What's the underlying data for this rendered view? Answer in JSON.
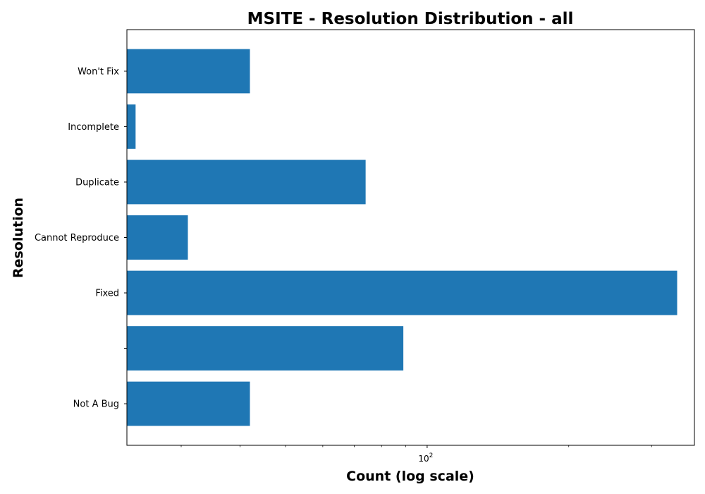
{
  "chart_data": {
    "type": "bar",
    "orientation": "horizontal",
    "title": "MSITE - Resolution Distribution - all",
    "xlabel": "Count (log scale)",
    "ylabel": "Resolution",
    "x_scale": "log",
    "xlim": [
      23,
      370
    ],
    "x_tick_labels": [
      {
        "base": "10",
        "exp": "2",
        "value": 100
      }
    ],
    "x_minor_ticks": [
      30,
      40,
      50,
      60,
      70,
      80,
      90,
      200,
      300
    ],
    "categories": [
      "Not A Bug",
      "",
      "Fixed",
      "Cannot Reproduce",
      "Duplicate",
      "Incomplete",
      "Won't Fix"
    ],
    "values": [
      42,
      89,
      340,
      31,
      74,
      24,
      42
    ],
    "bar_color": "#1f77b4",
    "grid": false,
    "legend": "none"
  }
}
